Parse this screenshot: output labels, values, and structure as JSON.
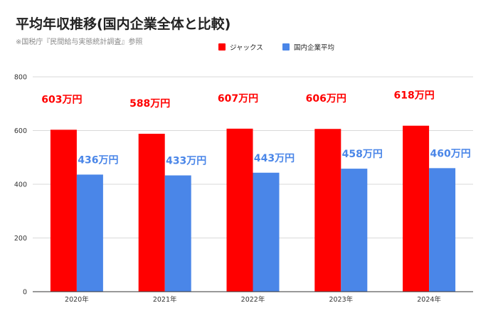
{
  "chart_data": {
    "type": "bar",
    "title": "平均年収推移(国内企業全体と比較)",
    "subtitle": "※国税庁『民間給与実態統計調査』参照",
    "categories": [
      "2020年",
      "2021年",
      "2022年",
      "2023年",
      "2024年"
    ],
    "series": [
      {
        "name": "ジャックス",
        "color": "#ff0000",
        "values": [
          603,
          588,
          607,
          606,
          618
        ],
        "labels": [
          "603万円",
          "588万円",
          "607万円",
          "606万円",
          "618万円"
        ]
      },
      {
        "name": "国内企業平均",
        "color": "#4a86e8",
        "values": [
          436,
          433,
          443,
          458,
          460
        ],
        "labels": [
          "436万円",
          "433万円",
          "443万円",
          "458万円",
          "460万円"
        ]
      }
    ],
    "ylim": [
      0,
      800
    ],
    "yticks": [
      0,
      200,
      400,
      600,
      800
    ],
    "ytick_labels": [
      "0",
      "200",
      "400",
      "600",
      "800"
    ],
    "xlabel": "",
    "ylabel": "",
    "grid": true,
    "legend_position": "top"
  }
}
